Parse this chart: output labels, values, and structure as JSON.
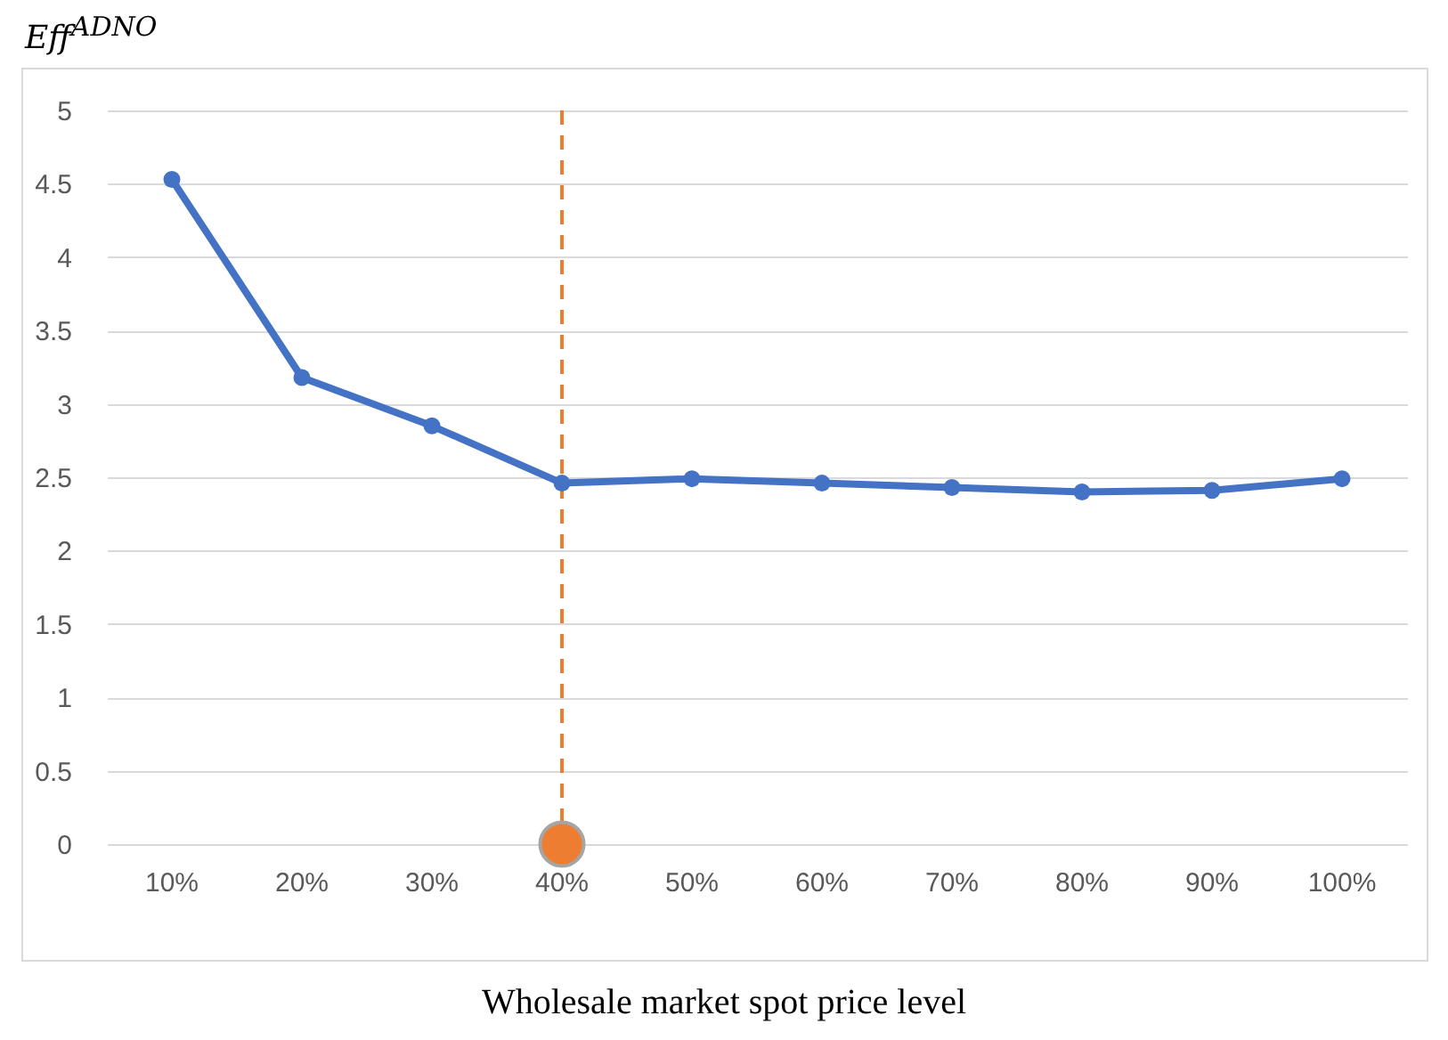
{
  "chart_data": {
    "type": "line",
    "ylabel": "Eff$^{ADNO}$",
    "xlabel": "Wholesale market spot price level",
    "categories": [
      "10%",
      "20%",
      "30%",
      "40%",
      "50%",
      "60%",
      "70%",
      "80%",
      "90%",
      "100%"
    ],
    "series": [
      {
        "color": "#4472c4",
        "values": [
          4.53,
          3.18,
          2.85,
          2.46,
          2.49,
          2.46,
          2.43,
          2.4,
          2.41,
          2.49
        ]
      },
      {
        "type": "scatter",
        "color": "#ed7d31",
        "x": [
          "40%"
        ],
        "values": [
          0
        ]
      }
    ],
    "ylim": [
      0,
      5
    ],
    "yticks": [
      0,
      0.5,
      1,
      1.5,
      2,
      2.5,
      3,
      3.5,
      4,
      4.5,
      5
    ],
    "grid": "y",
    "marker": "circle",
    "line_style": "solid",
    "ref_lines": [
      {
        "axis": "x",
        "value": "40%",
        "color": "#ed7d31",
        "line_style": "dashed"
      }
    ]
  }
}
